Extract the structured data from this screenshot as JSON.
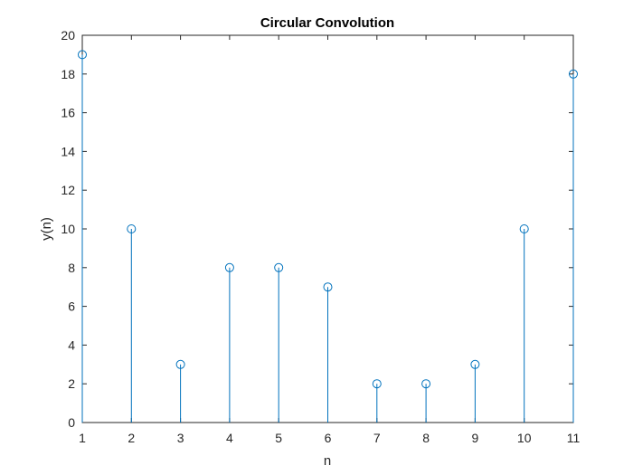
{
  "chart_data": {
    "type": "stem",
    "title": "Circular Convolution",
    "xlabel": "n",
    "ylabel": "y(n)",
    "xlim": [
      1,
      11
    ],
    "ylim": [
      0,
      20
    ],
    "xticks": [
      1,
      2,
      3,
      4,
      5,
      6,
      7,
      8,
      9,
      10,
      11
    ],
    "yticks": [
      0,
      2,
      4,
      6,
      8,
      10,
      12,
      14,
      16,
      18,
      20
    ],
    "grid": false,
    "series": [
      {
        "x": [
          1,
          2,
          3,
          4,
          5,
          6,
          7,
          8,
          9,
          10,
          11
        ],
        "values": [
          19,
          10,
          3,
          8,
          8,
          7,
          2,
          2,
          3,
          10,
          18
        ],
        "color": "#0072BD",
        "marker": "circle-open"
      }
    ]
  },
  "colors": {
    "axis": "#262626",
    "background": "#ffffff"
  }
}
